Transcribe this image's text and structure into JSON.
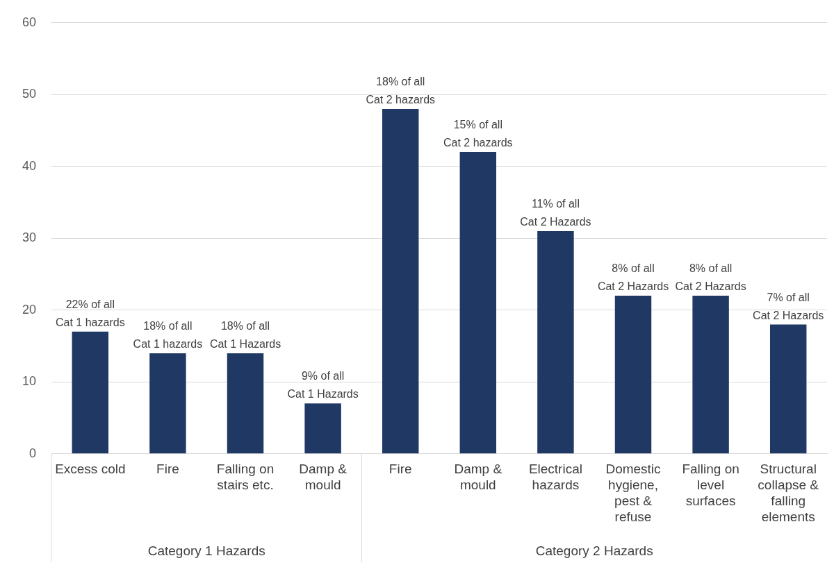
{
  "chart_data": {
    "type": "bar",
    "categories": [
      "Excess cold",
      "Fire",
      "Falling on stairs etc.",
      "Damp & mould",
      "Fire",
      "Damp & mould",
      "Electrical hazards",
      "Domestic hygiene, pest & refuse",
      "Falling on level surfaces",
      "Structural collapse & falling elements"
    ],
    "values": [
      17,
      14,
      14,
      7,
      48,
      42,
      31,
      22,
      22,
      18
    ],
    "color": "#1f3864",
    "annotations": [
      {
        "text": "22% of all Cat 1 hazards",
        "x": "Excess cold",
        "y": 17
      },
      {
        "text": "18% of all Cat 1 hazards",
        "x": "Fire",
        "y": 14
      },
      {
        "text": "18% of all Cat 1 Hazards",
        "x": "Falling on stairs etc.",
        "y": 14
      },
      {
        "text": "9% of all Cat 1 Hazards",
        "x": "Damp & mould",
        "y": 7
      },
      "18% of all Cat 2 hazards",
      "15% of all Cat 2 hazards",
      {
        "text": "11% of all Cat 2 Hazards",
        "x": "Electrical hazards",
        "y": 31
      },
      {
        "text": "8% of all Cat 2 Hazards",
        "x": "Domestic hygiene, pest & refuse",
        "y": 22
      },
      {
        "text": "8% of all Cat 2 Hazards",
        "x": "Falling on level surfaces",
        "y": 22
      },
      {
        "text": "7% of all Cat 2 Hazards",
        "x": "Structural collapse & falling elements",
        "y": 18
      },
      "Category 1 Hazards",
      "Category 2 Hazards"
    ],
    "ylim": [
      0,
      60
    ],
    "yticks": [
      0,
      10,
      20,
      30,
      40,
      50,
      60
    ],
    "grid": "y"
  }
}
